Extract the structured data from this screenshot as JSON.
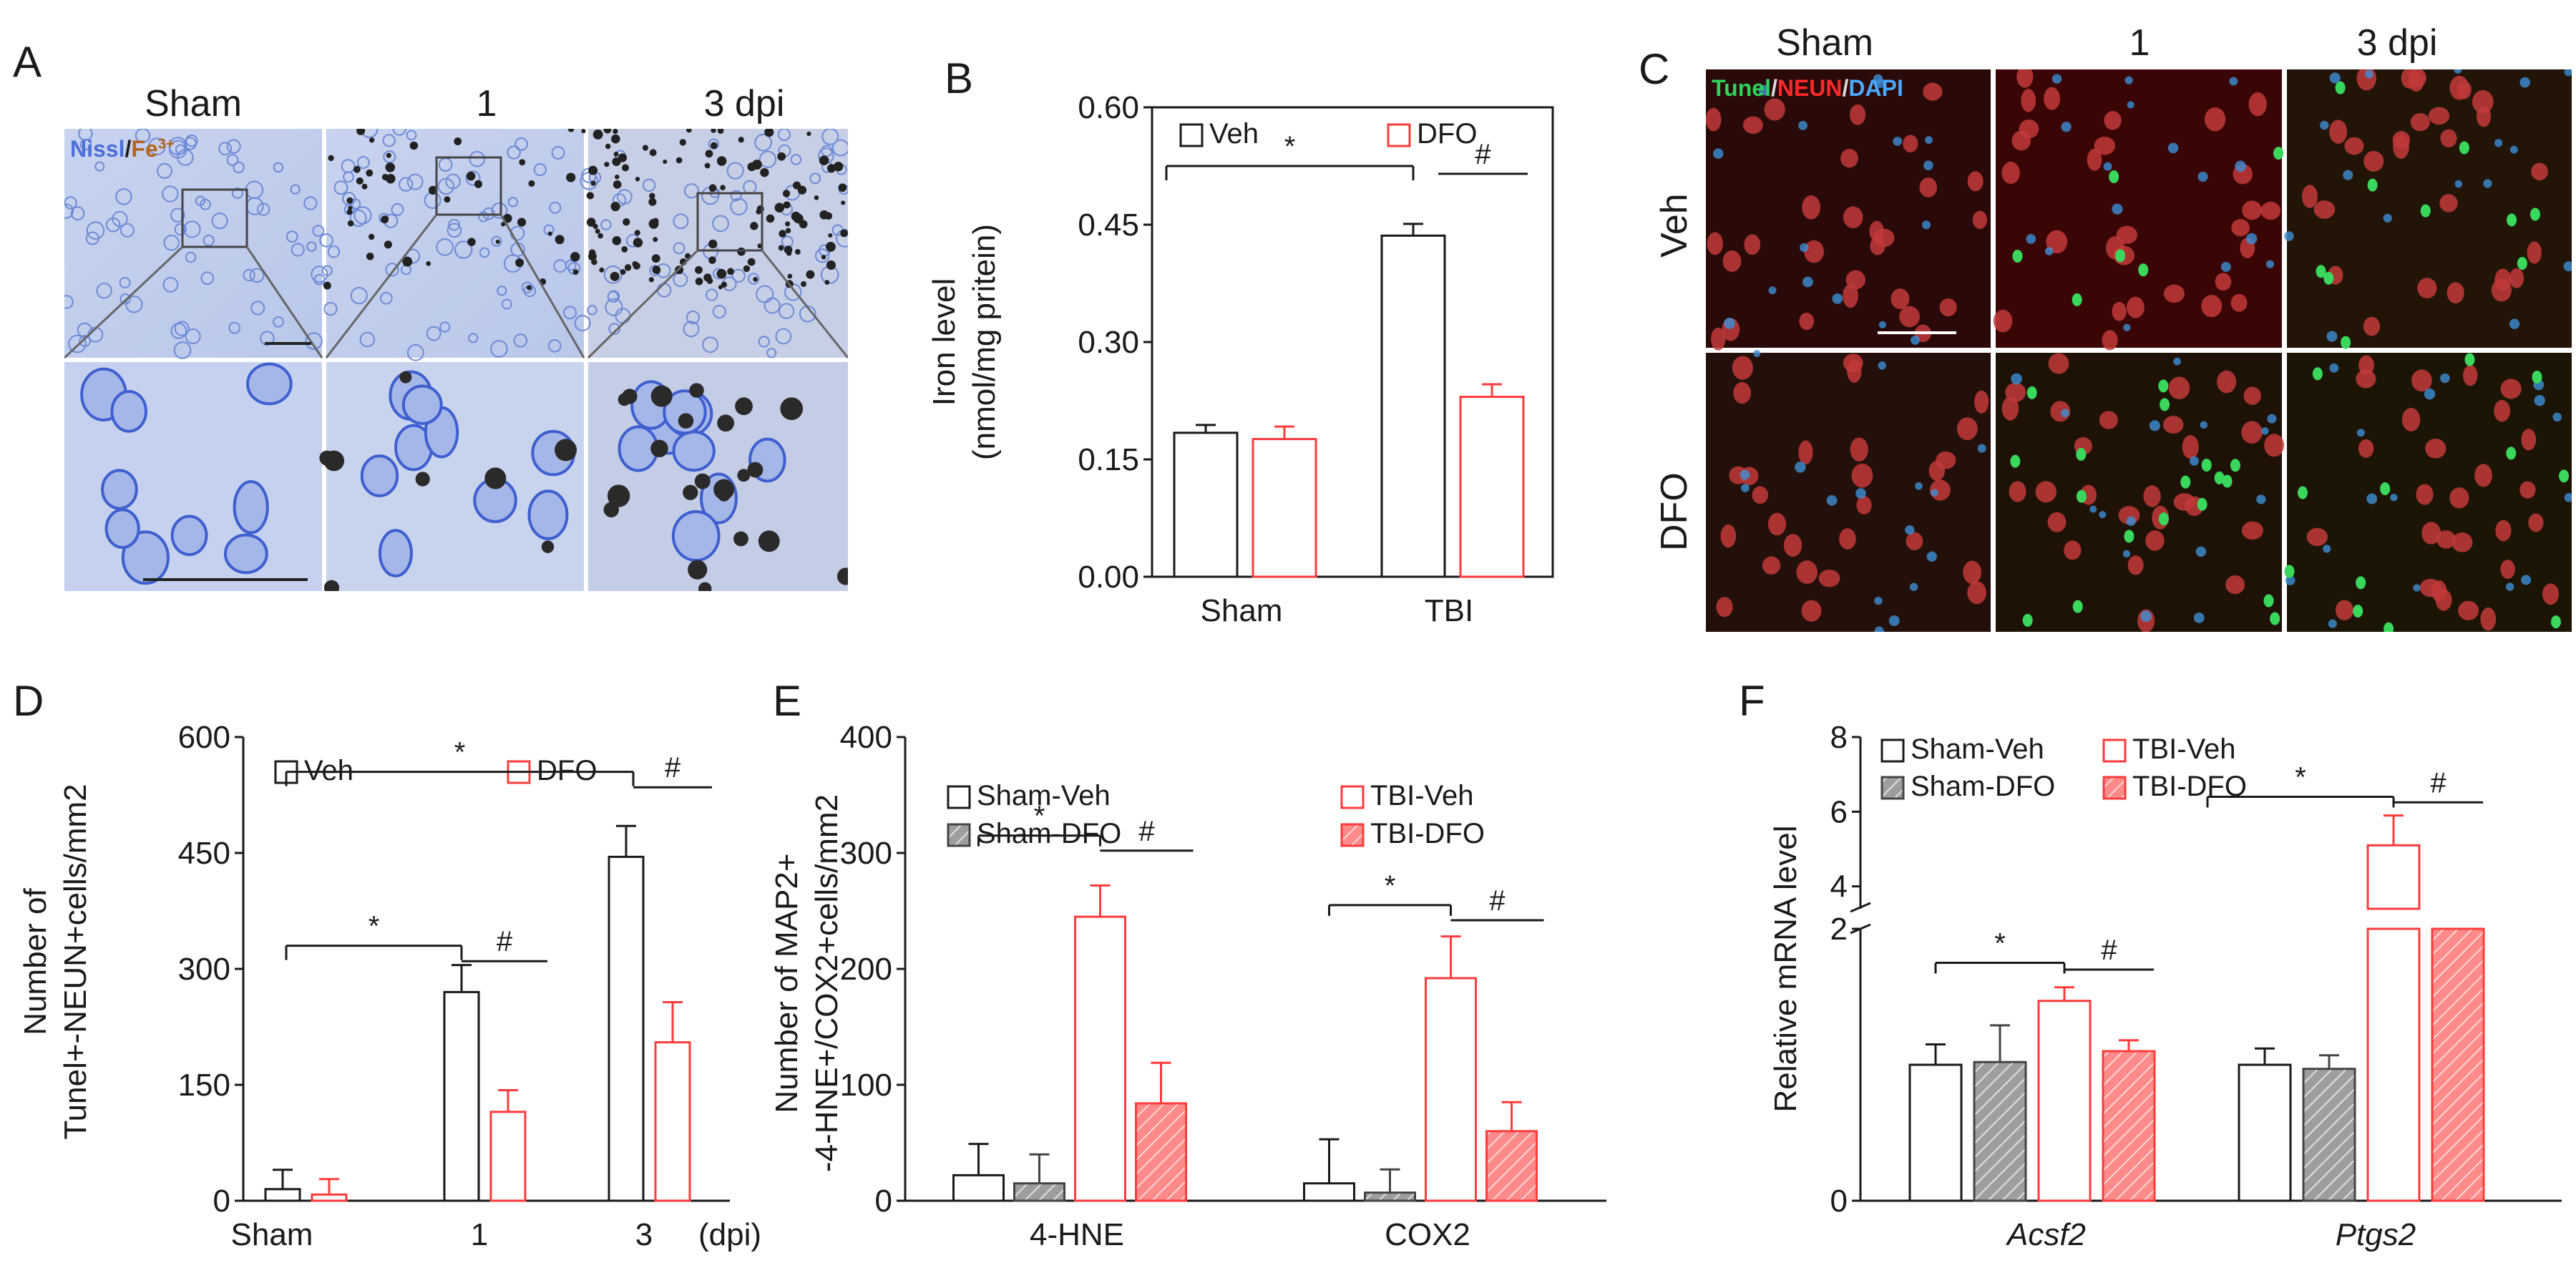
{
  "panels": {
    "A": {
      "letter": "A",
      "columns": [
        "Sham",
        "1",
        "3 dpi"
      ],
      "stain": {
        "part1": "Nissl",
        "sep": "/",
        "part2": "Fe",
        "sup": "3+"
      }
    },
    "C": {
      "letter": "C",
      "columns": [
        "Sham",
        "1",
        "3 dpi"
      ],
      "rows": [
        "Veh",
        "DFO"
      ],
      "stain": {
        "part1": "Tunel",
        "sep1": "/",
        "part2": "NEUN",
        "sep2": "/",
        "part3": "DAPI"
      }
    }
  },
  "colors": {
    "veh": "#1a1a1a",
    "dfo": "#ff3b3b",
    "sham_dfo_fill": "#9e9e9e",
    "nissl_blue": "#4a6fd8",
    "fe_brown": "#b5651d",
    "tunel_green": "#2fd35a",
    "neun_red": "#ff2a2a",
    "dapi_blue": "#4aa8ff"
  },
  "chart_data": [
    {
      "panel": "B",
      "type": "bar",
      "ylabel": [
        "Iron level",
        "(nmol/mg pritein)"
      ],
      "categories": [
        "Sham",
        "TBI"
      ],
      "ylim": [
        0,
        0.6
      ],
      "yticks": [
        "0.00",
        "0.15",
        "0.30",
        "0.45",
        "0.60"
      ],
      "series": [
        {
          "name": "Veh",
          "values": [
            0.184,
            0.436
          ],
          "errors": [
            0.01,
            0.015
          ]
        },
        {
          "name": "DFO",
          "values": [
            0.176,
            0.23
          ],
          "errors": [
            0.016,
            0.016
          ]
        }
      ],
      "legend": [
        "Veh",
        "DFO"
      ],
      "annotations": [
        "*",
        "#"
      ]
    },
    {
      "panel": "D",
      "type": "bar",
      "ylabel": [
        "Number of",
        "Tunel+-NEUN+cells/mm2"
      ],
      "categories": [
        "Sham",
        "1",
        "3"
      ],
      "xunit": "(dpi)",
      "ylim": [
        0,
        600
      ],
      "yticks": [
        "0",
        "150",
        "300",
        "450",
        "600"
      ],
      "series": [
        {
          "name": "Veh",
          "values": [
            15,
            270,
            445
          ],
          "errors": [
            25,
            35,
            40
          ]
        },
        {
          "name": "DFO",
          "values": [
            8,
            115,
            205
          ],
          "errors": [
            20,
            28,
            52
          ]
        }
      ],
      "legend": [
        "Veh",
        "DFO"
      ],
      "annotations": [
        "*",
        "#",
        "*",
        "#"
      ]
    },
    {
      "panel": "E",
      "type": "bar",
      "ylabel": [
        "Number of MAP2+",
        "-4-HNE+/COX2+cells/mm2"
      ],
      "categories": [
        "4-HNE",
        "COX2"
      ],
      "ylim": [
        0,
        400
      ],
      "yticks": [
        "0",
        "100",
        "200",
        "300",
        "400"
      ],
      "series": [
        {
          "name": "Sham-Veh",
          "values": [
            22,
            15
          ],
          "errors": [
            27,
            38
          ]
        },
        {
          "name": "Sham-DFO",
          "values": [
            15,
            7
          ],
          "errors": [
            25,
            20
          ]
        },
        {
          "name": "TBI-Veh",
          "values": [
            245,
            192
          ],
          "errors": [
            27,
            36
          ]
        },
        {
          "name": "TBI-DFO",
          "values": [
            84,
            60
          ],
          "errors": [
            35,
            25
          ]
        }
      ],
      "legend": [
        "Sham-Veh",
        "Sham-DFO",
        "TBI-Veh",
        "TBI-DFO"
      ],
      "annotations": [
        "*",
        "#",
        "*",
        "#"
      ]
    },
    {
      "panel": "F",
      "type": "bar",
      "ylabel": [
        "Relative mRNA level"
      ],
      "categories": [
        "Acsf2",
        "Ptgs2"
      ],
      "ylim": [
        0,
        8
      ],
      "axis_break": [
        2,
        3.4
      ],
      "yticks": [
        "0",
        "2",
        "4",
        "6",
        "8"
      ],
      "series": [
        {
          "name": "Sham-Veh",
          "values": [
            1.0,
            1.0
          ],
          "errors": [
            0.15,
            0.12
          ]
        },
        {
          "name": "Sham-DFO",
          "values": [
            1.02,
            0.97
          ],
          "errors": [
            0.27,
            0.1
          ]
        },
        {
          "name": "TBI-Veh",
          "values": [
            1.47,
            5.1
          ],
          "errors": [
            0.1,
            0.8
          ]
        },
        {
          "name": "TBI-DFO",
          "values": [
            1.1,
            2.0
          ],
          "errors": [
            0.08,
            0
          ]
        }
      ],
      "legend": [
        "Sham-Veh",
        "Sham-DFO",
        "TBI-Veh",
        "TBI-DFO"
      ],
      "annotations": [
        "*",
        "#",
        "*",
        "#"
      ]
    }
  ]
}
